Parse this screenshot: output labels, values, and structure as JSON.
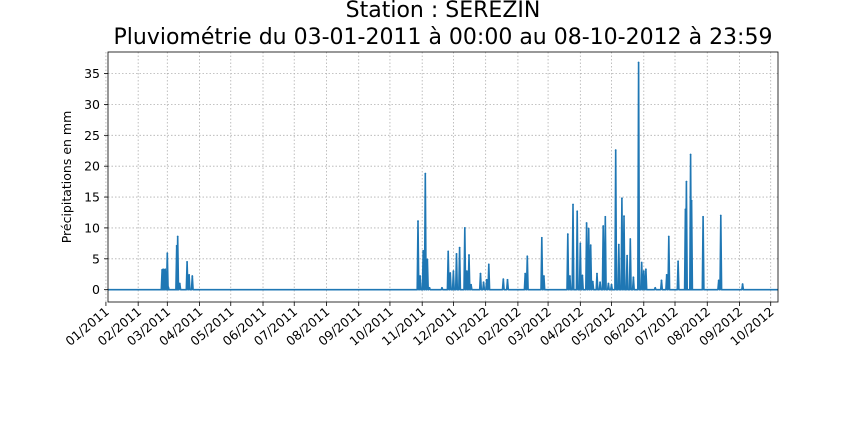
{
  "chart_data": {
    "type": "line",
    "title": "Station : SEREZIN",
    "subtitle": "Pluviométrie du 03-01-2011 à 00:00 au 08-10-2012 à 23:59",
    "xlabel": "",
    "ylabel": "Précipitations en mm",
    "xlim": [
      "2011-01-03",
      "2012-10-08"
    ],
    "ylim": [
      -2,
      38.5
    ],
    "grid": true,
    "x_tick_labels": [
      "01/2011",
      "02/2011",
      "03/2011",
      "04/2011",
      "05/2011",
      "06/2011",
      "07/2011",
      "08/2011",
      "09/2011",
      "10/2011",
      "11/2011",
      "12/2011",
      "01/2012",
      "02/2012",
      "03/2012",
      "04/2012",
      "05/2012",
      "06/2012",
      "07/2012",
      "08/2012",
      "09/2012",
      "10/2012"
    ],
    "y_ticks": [
      0,
      5,
      10,
      15,
      20,
      25,
      30,
      35
    ],
    "series": [
      {
        "color": "#1f77b4",
        "points": [
          [
            "2011-02-24",
            3.2
          ],
          [
            "2011-02-25",
            3.3
          ],
          [
            "2011-02-26",
            3.2
          ],
          [
            "2011-02-27",
            3.3
          ],
          [
            "2011-03-01",
            5.9
          ],
          [
            "2011-03-02",
            0.4
          ],
          [
            "2011-03-10",
            7.1
          ],
          [
            "2011-03-11",
            8.6
          ],
          [
            "2011-03-13",
            1.0
          ],
          [
            "2011-03-20",
            4.5
          ],
          [
            "2011-03-22",
            2.4
          ],
          [
            "2011-03-25",
            2.2
          ],
          [
            "2011-10-28",
            11.1
          ],
          [
            "2011-10-30",
            2.2
          ],
          [
            "2011-11-02",
            6.3
          ],
          [
            "2011-11-04",
            18.8
          ],
          [
            "2011-11-06",
            4.9
          ],
          [
            "2011-11-08",
            0.3
          ],
          [
            "2011-11-20",
            0.3
          ],
          [
            "2011-11-26",
            6.2
          ],
          [
            "2011-11-28",
            2.7
          ],
          [
            "2011-12-01",
            3.0
          ],
          [
            "2011-12-04",
            5.8
          ],
          [
            "2011-12-07",
            6.8
          ],
          [
            "2011-12-12",
            10.0
          ],
          [
            "2011-12-14",
            3.0
          ],
          [
            "2011-12-16",
            5.6
          ],
          [
            "2011-12-18",
            0.8
          ],
          [
            "2011-12-27",
            2.6
          ],
          [
            "2011-12-30",
            1.2
          ],
          [
            "2012-01-02",
            1.6
          ],
          [
            "2012-01-04",
            4.1
          ],
          [
            "2012-01-18",
            1.7
          ],
          [
            "2012-01-22",
            1.6
          ],
          [
            "2012-02-08",
            2.6
          ],
          [
            "2012-02-10",
            5.4
          ],
          [
            "2012-02-24",
            8.4
          ],
          [
            "2012-02-26",
            2.2
          ],
          [
            "2012-03-20",
            9.0
          ],
          [
            "2012-03-22",
            2.2
          ],
          [
            "2012-03-25",
            13.8
          ],
          [
            "2012-03-29",
            12.7
          ],
          [
            "2012-04-01",
            7.5
          ],
          [
            "2012-04-03",
            2.3
          ],
          [
            "2012-04-07",
            10.8
          ],
          [
            "2012-04-09",
            9.9
          ],
          [
            "2012-04-11",
            7.2
          ],
          [
            "2012-04-13",
            1.3
          ],
          [
            "2012-04-17",
            2.6
          ],
          [
            "2012-04-20",
            1.2
          ],
          [
            "2012-04-23",
            10.3
          ],
          [
            "2012-04-25",
            11.8
          ],
          [
            "2012-04-28",
            1.0
          ],
          [
            "2012-05-01",
            0.8
          ],
          [
            "2012-05-05",
            22.6
          ],
          [
            "2012-05-08",
            7.3
          ],
          [
            "2012-05-11",
            14.8
          ],
          [
            "2012-05-13",
            11.9
          ],
          [
            "2012-05-16",
            5.5
          ],
          [
            "2012-05-19",
            8.2
          ],
          [
            "2012-05-22",
            2.0
          ],
          [
            "2012-05-27",
            36.8
          ],
          [
            "2012-05-30",
            4.4
          ],
          [
            "2012-06-01",
            3.0
          ],
          [
            "2012-06-03",
            3.3
          ],
          [
            "2012-06-12",
            0.3
          ],
          [
            "2012-06-18",
            1.5
          ],
          [
            "2012-06-23",
            2.4
          ],
          [
            "2012-06-25",
            8.6
          ],
          [
            "2012-07-04",
            4.6
          ],
          [
            "2012-07-11",
            13.0
          ],
          [
            "2012-07-12",
            17.5
          ],
          [
            "2012-07-16",
            21.9
          ],
          [
            "2012-07-17",
            14.4
          ],
          [
            "2012-07-28",
            11.8
          ],
          [
            "2012-08-12",
            1.5
          ],
          [
            "2012-08-14",
            12.0
          ],
          [
            "2012-09-04",
            0.9
          ]
        ]
      }
    ]
  }
}
